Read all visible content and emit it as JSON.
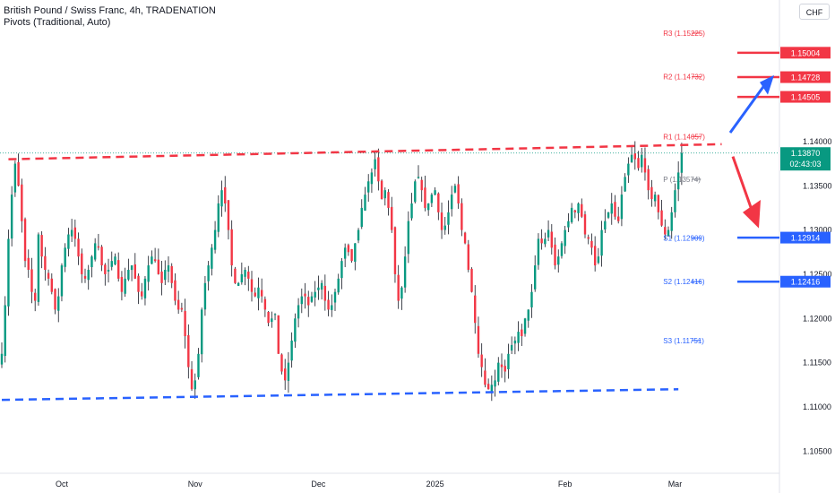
{
  "header": {
    "title": "British Pound / Swiss Franc, 4h, TRADENATION",
    "indicator": "Pivots (Traditional, Auto)"
  },
  "currency_badge": "CHF",
  "chart_data": {
    "type": "candlestick",
    "symbol": "GBPCHF",
    "timeframe": "4h",
    "y_axis": {
      "range": [
        1.1025,
        1.156
      ],
      "ticks": [
        "1.14000",
        "1.13500",
        "1.13000",
        "1.12500",
        "1.12000",
        "1.11500",
        "1.11000",
        "1.10500"
      ],
      "tick_values": [
        1.14,
        1.135,
        1.13,
        1.125,
        1.12,
        1.115,
        1.11,
        1.105
      ]
    },
    "x_axis": {
      "ticks": [
        "Oct",
        "Nov",
        "Dec",
        "2025",
        "Feb",
        "Mar"
      ],
      "tick_index": [
        18,
        58,
        95,
        130,
        169,
        202
      ]
    },
    "close_path": [
      1.116,
      1.1215,
      1.129,
      1.134,
      1.1375,
      1.135,
      1.131,
      1.1265,
      1.1255,
      1.123,
      1.122,
      1.1295,
      1.127,
      1.1255,
      1.1245,
      1.123,
      1.121,
      1.1225,
      1.126,
      1.128,
      1.1295,
      1.13,
      1.129,
      1.127,
      1.125,
      1.1245,
      1.1255,
      1.127,
      1.1285,
      1.128,
      1.126,
      1.125,
      1.1255,
      1.1265,
      1.127,
      1.1245,
      1.123,
      1.1245,
      1.1255,
      1.126,
      1.1245,
      1.123,
      1.1225,
      1.1245,
      1.126,
      1.127,
      1.1265,
      1.125,
      1.124,
      1.1255,
      1.126,
      1.124,
      1.122,
      1.121,
      1.121,
      1.118,
      1.1145,
      1.112,
      1.113,
      1.116,
      1.121,
      1.124,
      1.126,
      1.128,
      1.13,
      1.133,
      1.1345,
      1.133,
      1.13,
      1.126,
      1.124,
      1.124,
      1.125,
      1.1255,
      1.1245,
      1.123,
      1.1225,
      1.1235,
      1.1225,
      1.121,
      1.1195,
      1.12,
      1.1205,
      1.116,
      1.114,
      1.113,
      1.115,
      1.1175,
      1.12,
      1.1215,
      1.1225,
      1.1225,
      1.1215,
      1.1225,
      1.123,
      1.1235,
      1.124,
      1.122,
      1.121,
      1.1215,
      1.123,
      1.1245,
      1.1265,
      1.128,
      1.1275,
      1.1265,
      1.1285,
      1.13,
      1.1325,
      1.134,
      1.1355,
      1.1365,
      1.138,
      1.1355,
      1.1335,
      1.1345,
      1.1325,
      1.13,
      1.125,
      1.122,
      1.1235,
      1.127,
      1.131,
      1.133,
      1.1355,
      1.136,
      1.1345,
      1.1325,
      1.133,
      1.134,
      1.1345,
      1.132,
      1.13,
      1.1305,
      1.132,
      1.134,
      1.135,
      1.133,
      1.13,
      1.1285,
      1.1255,
      1.123,
      1.1195,
      1.116,
      1.1145,
      1.1125,
      1.112,
      1.1125,
      1.113,
      1.115,
      1.1145,
      1.114,
      1.116,
      1.117,
      1.1175,
      1.1185,
      1.118,
      1.12,
      1.121,
      1.123,
      1.126,
      1.129,
      1.1285,
      1.129,
      1.13,
      1.128,
      1.126,
      1.127,
      1.1285,
      1.13,
      1.131,
      1.1325,
      1.132,
      1.133,
      1.1315,
      1.1295,
      1.129,
      1.128,
      1.126,
      1.127,
      1.13,
      1.131,
      1.132,
      1.133,
      1.1315,
      1.131,
      1.134,
      1.136,
      1.1375,
      1.1385,
      1.138,
      1.137,
      1.1385,
      1.1365,
      1.1345,
      1.1335,
      1.134,
      1.132,
      1.1305,
      1.1295,
      1.13,
      1.132,
      1.1345,
      1.1365,
      1.1387
    ],
    "pivots": [
      {
        "label": "R3 (1.15225)",
        "value": 1.15225,
        "color": "#f23645"
      },
      {
        "label": "R2 (1.14732)",
        "value": 1.14732,
        "color": "#f23645"
      },
      {
        "label": "R1 (1.14057)",
        "value": 1.14057,
        "color": "#f23645"
      },
      {
        "label": "P (1.13574)",
        "value": 1.13574,
        "color": "#787b86"
      },
      {
        "label": "S1 (1.12909)",
        "value": 1.12909,
        "color": "#2962ff"
      },
      {
        "label": "S2 (1.12416)",
        "value": 1.12416,
        "color": "#2962ff"
      },
      {
        "label": "S3 (1.11751)",
        "value": 1.11751,
        "color": "#2962ff"
      }
    ],
    "level_lines": [
      {
        "value": 1.15004,
        "label": "1.15004",
        "color": "#f23645"
      },
      {
        "value": 1.14728,
        "label": "1.14728",
        "color": "#f23645"
      },
      {
        "value": 1.14505,
        "label": "1.14505",
        "color": "#f23645"
      },
      {
        "value": 1.12914,
        "label": "1.12914",
        "color": "#2962ff"
      },
      {
        "value": 1.12416,
        "label": "1.12416",
        "color": "#2962ff"
      }
    ],
    "last_price": {
      "value": 1.1387,
      "label": "1.13870",
      "countdown": "02:43:03",
      "color": "#089981"
    },
    "resistance_trendline": {
      "from": [
        2,
        1.138
      ],
      "to": [
        216,
        1.1397
      ],
      "color": "#f23645",
      "style": "dashed"
    },
    "support_trendline": {
      "from": [
        0,
        1.1108
      ],
      "to": [
        203,
        1.112
      ],
      "color": "#2962ff",
      "style": "dashed"
    },
    "arrows": [
      {
        "direction": "up",
        "color": "#2962ff"
      },
      {
        "direction": "down",
        "color": "#f23645"
      }
    ],
    "colors": {
      "up": "#089981",
      "down": "#f23645",
      "neutral": "#131722"
    }
  }
}
